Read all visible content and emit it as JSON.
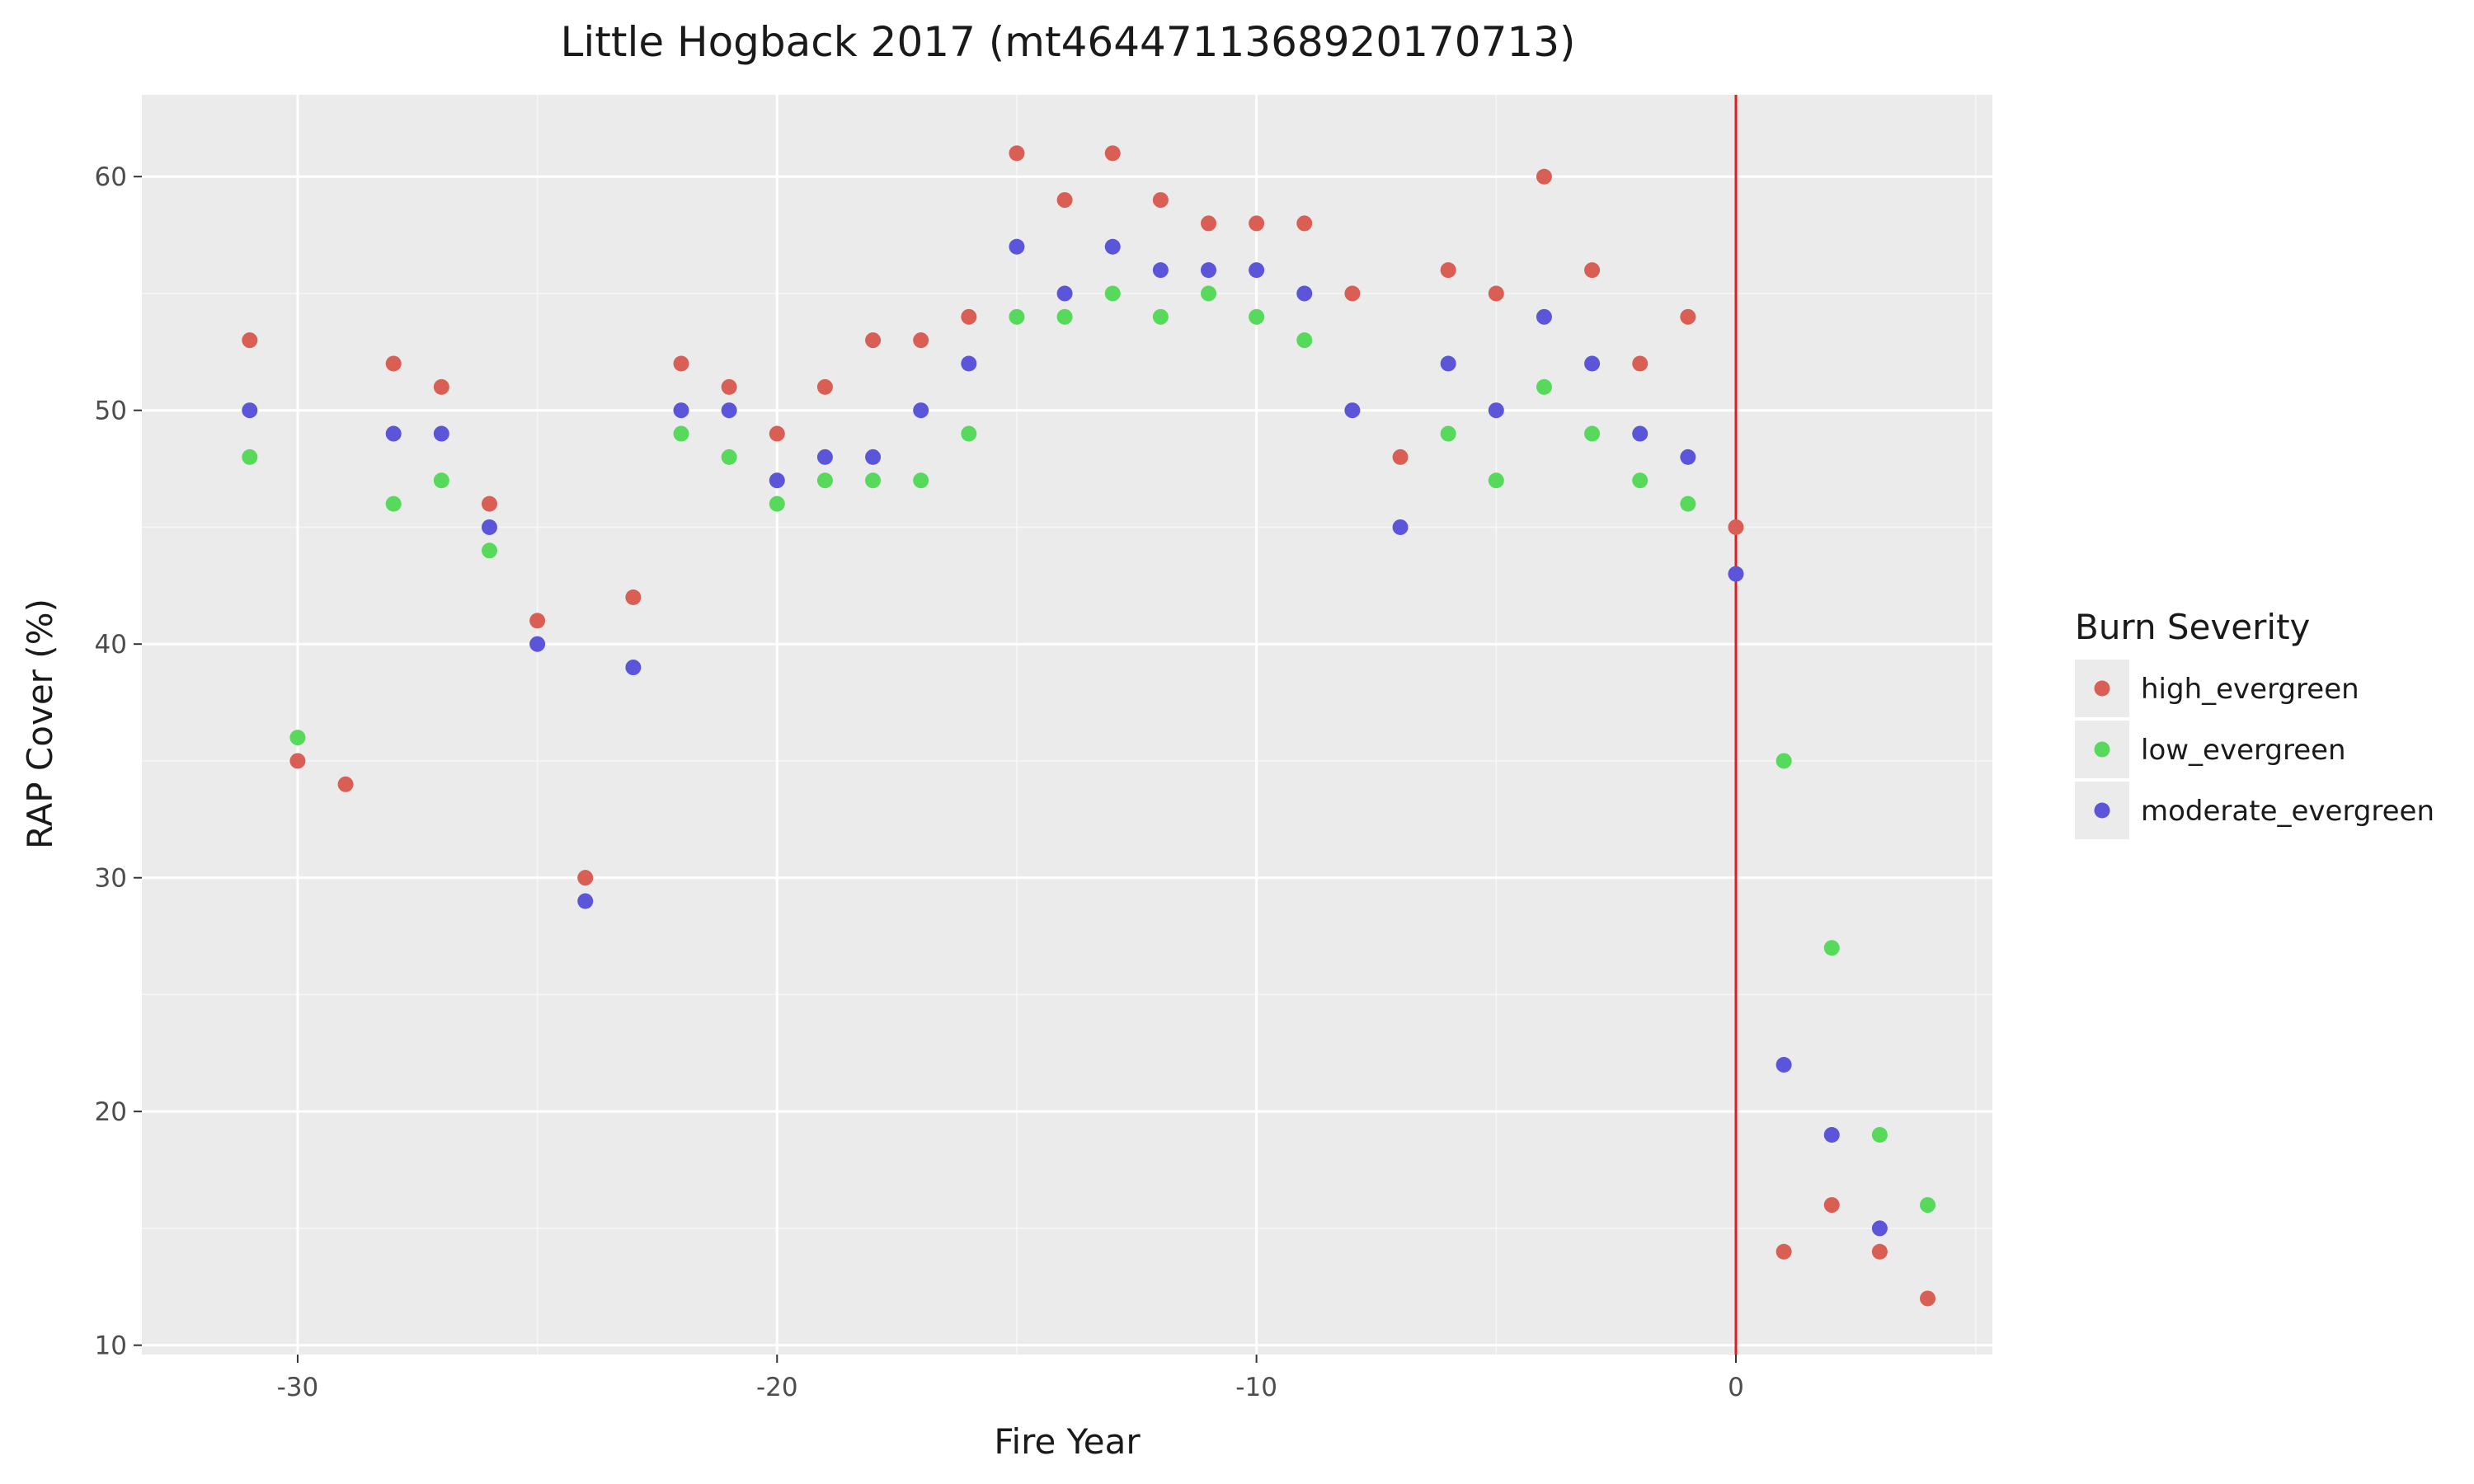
{
  "chart_data": {
    "type": "scatter",
    "title": "Little Hogback 2017 (mt4644711368920170713)",
    "xlabel": "Fire Year",
    "ylabel": "RAP Cover (%)",
    "xlim": [
      -33.25,
      5.35
    ],
    "ylim": [
      9.6,
      63.5
    ],
    "x_ticks": [
      -30,
      -20,
      -10,
      0
    ],
    "x_tick_labels": [
      "-30",
      "-20",
      "-10",
      "0"
    ],
    "y_ticks": [
      10,
      20,
      30,
      40,
      50,
      60
    ],
    "y_tick_labels": [
      "10",
      "20",
      "30",
      "40",
      "50",
      "60"
    ],
    "grid": true,
    "vline": {
      "x": 0,
      "color": "#e41a1c"
    },
    "legend": {
      "title": "Burn Severity",
      "position": "right"
    },
    "series": [
      {
        "name": "high_evergreen",
        "color": "#d95f55",
        "x": [
          -31,
          -30,
          -29,
          -28,
          -27,
          -26,
          -25,
          -24,
          -23,
          -22,
          -21,
          -20,
          -19,
          -18,
          -17,
          -16,
          -15,
          -14,
          -13,
          -12,
          -11,
          -10,
          -9,
          -8,
          -7,
          -6,
          -5,
          -4,
          -3,
          -2,
          -1,
          0,
          1,
          2,
          3,
          4
        ],
        "y": [
          53,
          35,
          34,
          52,
          51,
          46,
          41,
          30,
          42,
          52,
          51,
          49,
          51,
          53,
          53,
          54,
          61,
          59,
          61,
          59,
          58,
          58,
          58,
          55,
          48,
          56,
          55,
          60,
          56,
          52,
          54,
          45,
          14,
          16,
          14,
          12
        ]
      },
      {
        "name": "low_evergreen",
        "color": "#57d95c",
        "x": [
          -31,
          -30,
          -28,
          -27,
          -26,
          -22,
          -21,
          -20,
          -19,
          -18,
          -17,
          -16,
          -15,
          -14,
          -13,
          -12,
          -11,
          -10,
          -9,
          -6,
          -5,
          -4,
          -3,
          -2,
          -1,
          1,
          2,
          3,
          4
        ],
        "y": [
          48,
          36,
          46,
          47,
          44,
          49,
          48,
          46,
          47,
          47,
          47,
          49,
          54,
          54,
          55,
          54,
          55,
          54,
          53,
          49,
          47,
          51,
          49,
          47,
          46,
          35,
          27,
          19,
          16
        ]
      },
      {
        "name": "moderate_evergreen",
        "color": "#5b55d9",
        "x": [
          -31,
          -28,
          -27,
          -26,
          -25,
          -24,
          -23,
          -22,
          -21,
          -20,
          -19,
          -18,
          -17,
          -16,
          -15,
          -14,
          -13,
          -12,
          -11,
          -10,
          -9,
          -8,
          -7,
          -6,
          -5,
          -4,
          -3,
          -2,
          -1,
          0,
          1,
          2,
          3
        ],
        "y": [
          50,
          49,
          49,
          45,
          40,
          29,
          39,
          50,
          50,
          47,
          48,
          48,
          50,
          52,
          57,
          55,
          57,
          56,
          56,
          56,
          55,
          50,
          45,
          52,
          50,
          54,
          52,
          49,
          48,
          43,
          22,
          19,
          15
        ]
      }
    ]
  }
}
